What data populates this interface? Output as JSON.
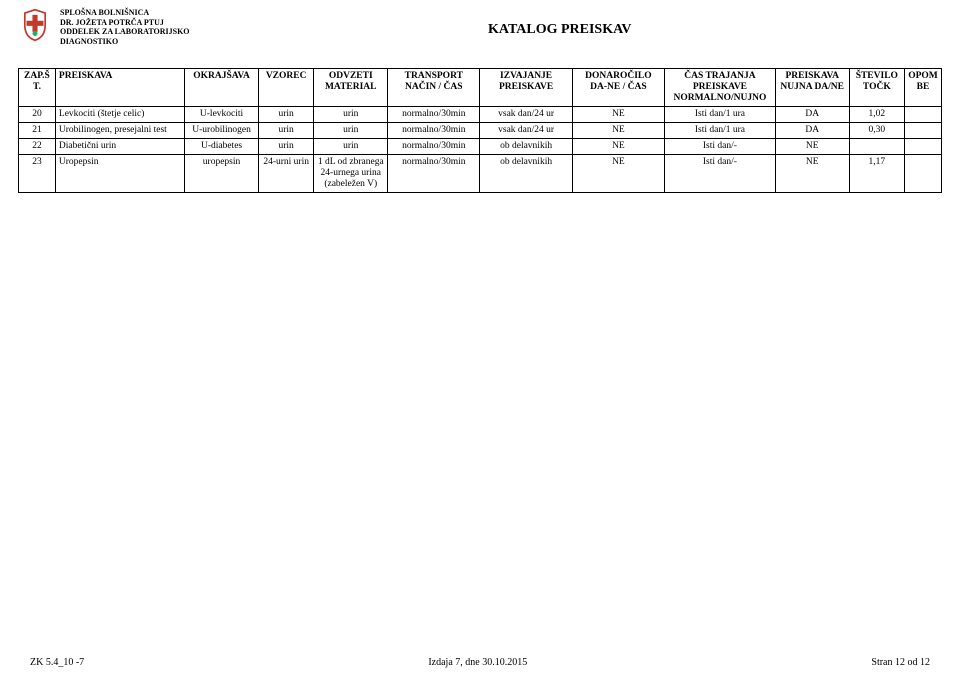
{
  "org": {
    "line1": "SPLOŠNA BOLNIŠNICA",
    "line2": "DR. JOŽETA POTRČA PTUJ",
    "line3": "ODDELEK ZA LABORATORIJSKO",
    "line4": "DIAGNOSTIKO"
  },
  "page_title": "KATALOG PREISKAV",
  "columns": [
    "ZAP.ŠT.",
    "PREISKAVA",
    "OKRAJŠAVA",
    "VZOREC",
    "ODVZETI MATERIAL",
    "TRANSPORT NAČIN / ČAS",
    "IZVAJANJE PREISKAVE",
    "DONAROČILO DA-NE / ČAS",
    "ČAS TRAJANJA PREISKAVE NORMALNO/NUJNO",
    "PREISKAVA NUJNA DA/NE",
    "ŠTEVILO TOČK",
    "OPOMBE"
  ],
  "col_widths": [
    "4%",
    "14%",
    "8%",
    "6%",
    "8%",
    "10%",
    "10%",
    "10%",
    "12%",
    "8%",
    "6%",
    "4%"
  ],
  "rows": [
    [
      "20",
      "Levkociti (štetje celic)",
      "U-levkociti",
      "urin",
      "urin",
      "normalno/30min",
      "vsak dan/24 ur",
      "NE",
      "Isti dan/1 ura",
      "DA",
      "1,02",
      ""
    ],
    [
      "21",
      "Urobilinogen, presejalni test",
      "U-urobilinogen",
      "urin",
      "urin",
      "normalno/30min",
      "vsak dan/24 ur",
      "NE",
      "Isti dan/1 ura",
      "DA",
      "0,30",
      ""
    ],
    [
      "22",
      "Diabetični urin",
      "U-diabetes",
      "urin",
      "urin",
      "normalno/30min",
      "ob delavnikih",
      "NE",
      "Isti dan/-",
      "NE",
      "",
      ""
    ],
    [
      "23",
      "Uropepsin",
      "uropepsin",
      "24-urni urin",
      "1 dL od zbranega 24-urnega urina (zabeležen V)",
      "normalno/30min",
      "ob delavnikih",
      "NE",
      "Isti dan/-",
      "NE",
      "1,17",
      ""
    ]
  ],
  "footer": {
    "left": "ZK 5.4_10 -7",
    "center": "Izdaja 7, dne 30.10.2015",
    "right": "Stran 12 od 12"
  },
  "colors": {
    "logo_red": "#c0392b",
    "logo_green": "#27ae60",
    "logo_yellow": "#f1c40f"
  }
}
